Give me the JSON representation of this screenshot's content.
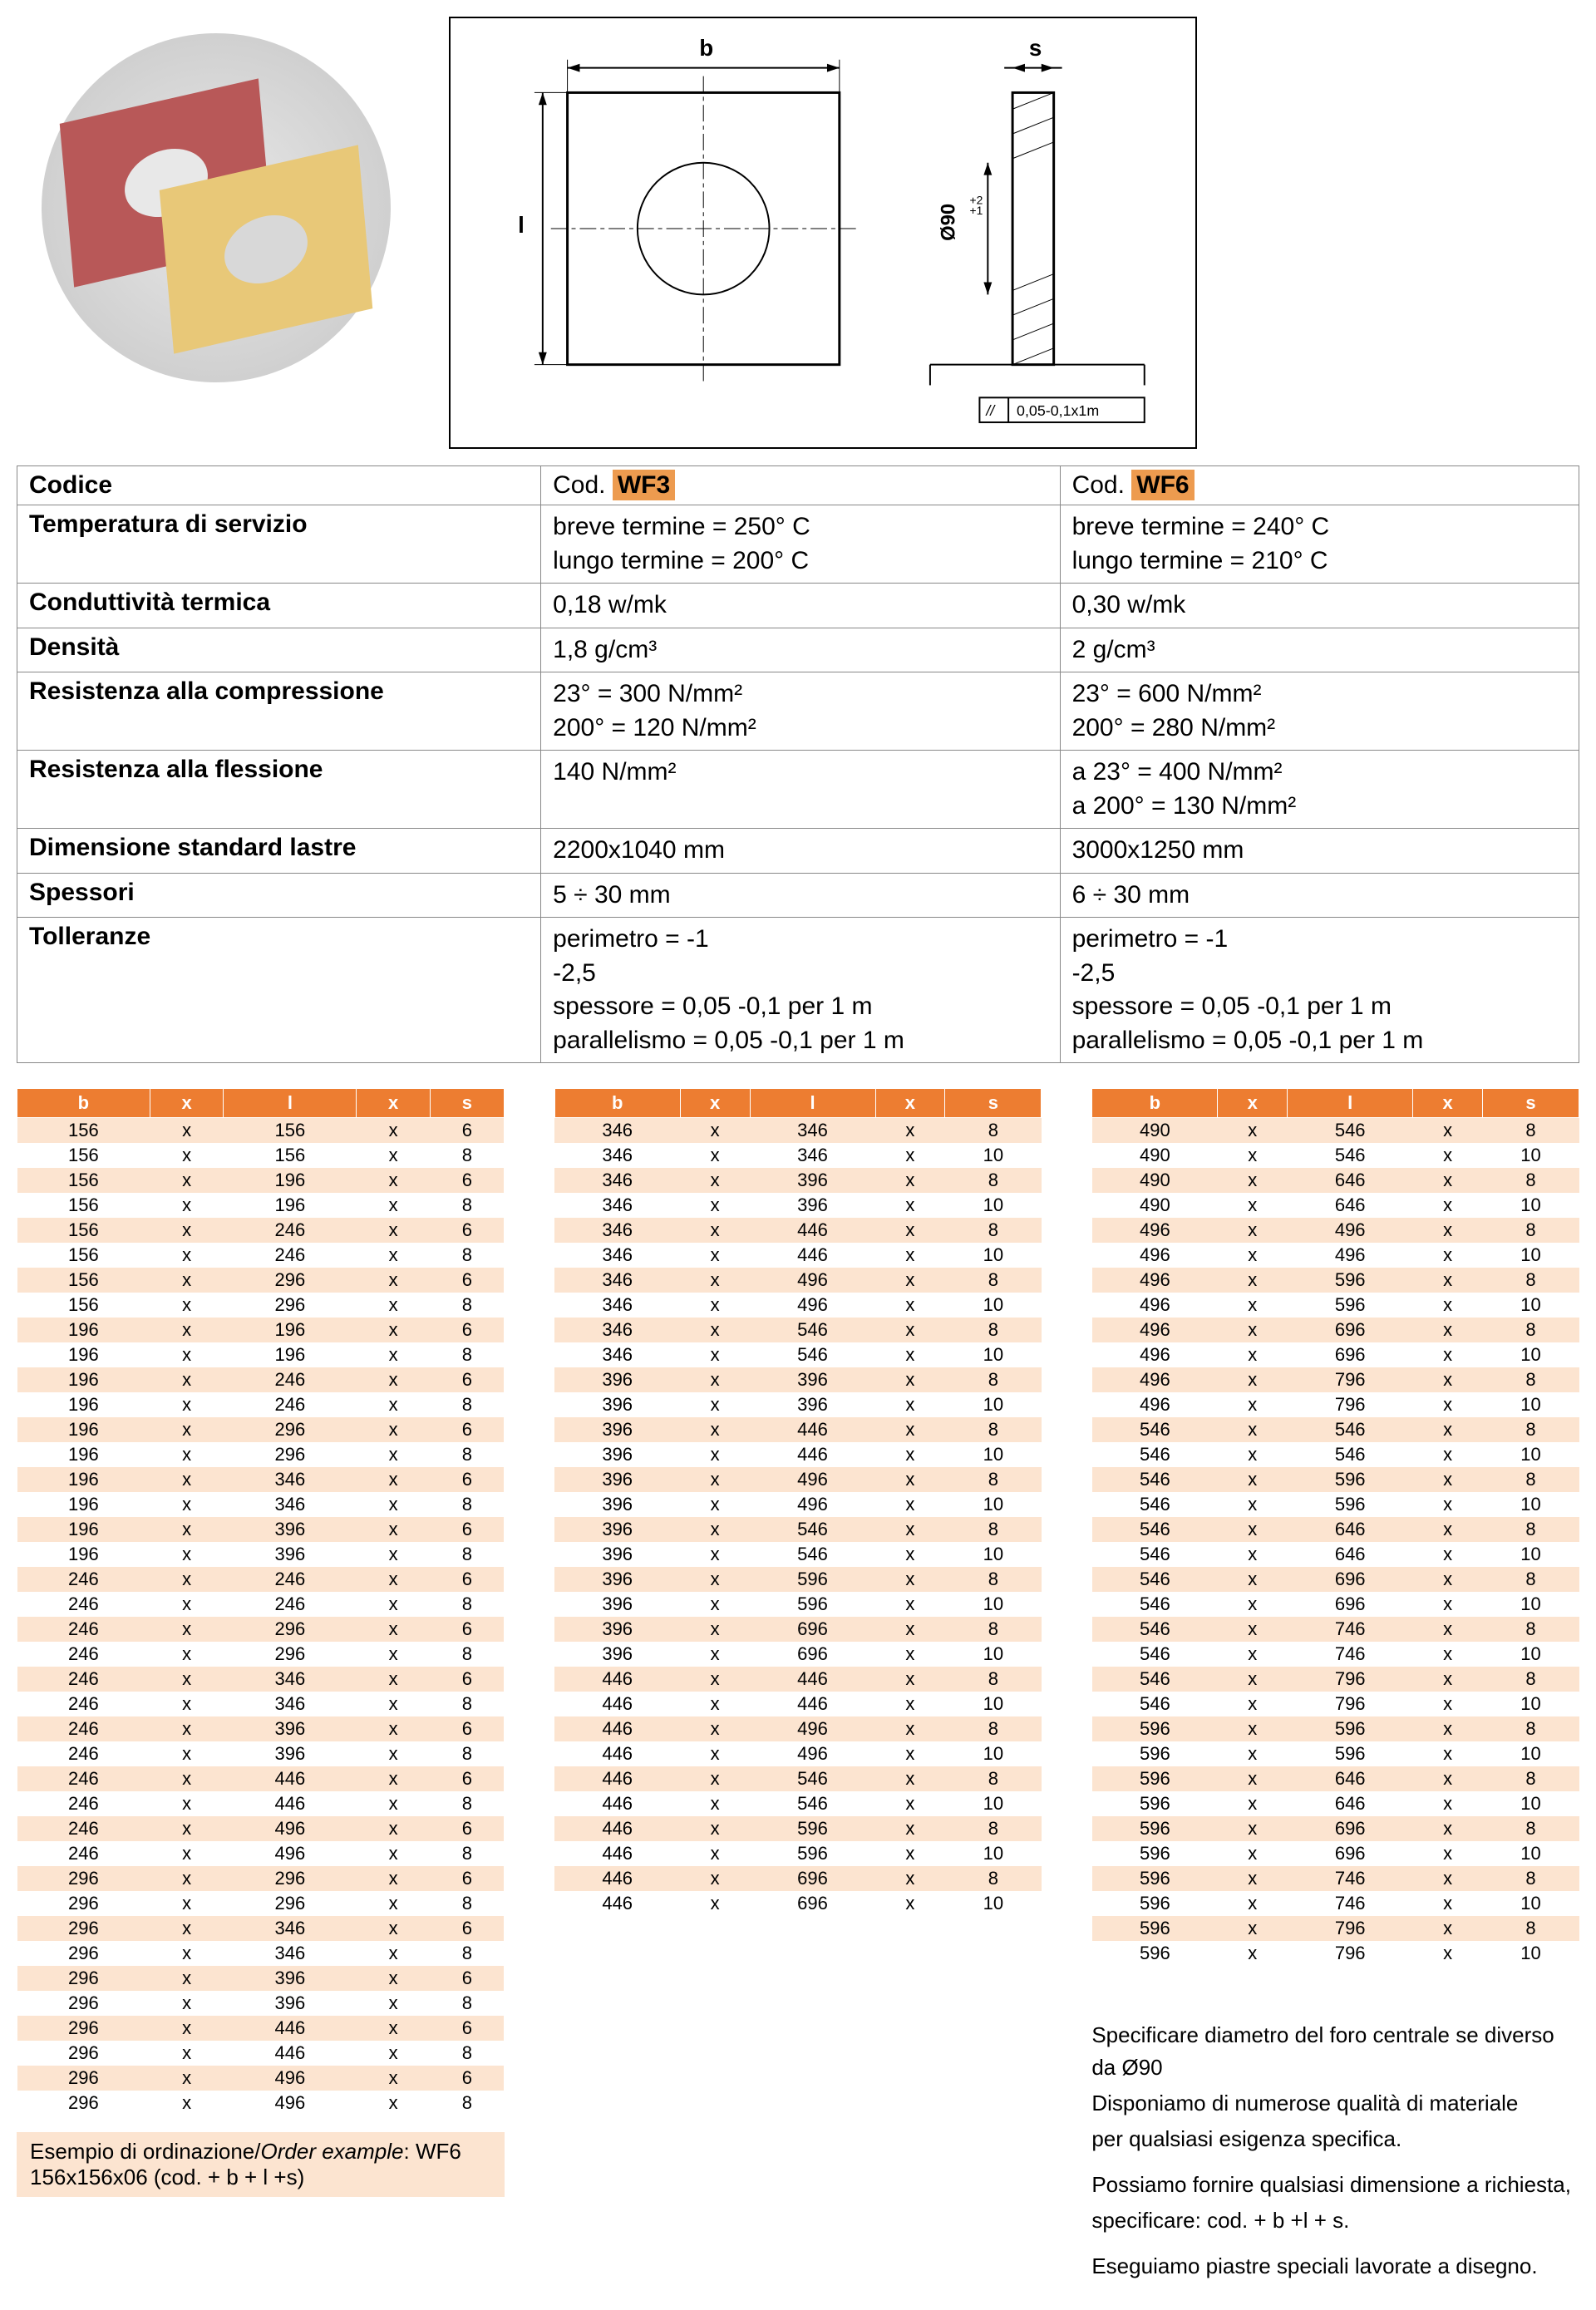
{
  "drawing": {
    "label_b": "b",
    "label_l": "l",
    "label_s": "s",
    "diameter_label": "Ø90",
    "diameter_tol_upper": "+2",
    "diameter_tol_lower": "+1",
    "flatness_box": "0,05-0,1x1m",
    "flatness_symbol": "//"
  },
  "spec": {
    "codice_label": "Codice",
    "cod_prefix": "Cod.",
    "wf3": "WF3",
    "wf6": "WF6",
    "rows": [
      {
        "label": "Temperatura di servizio",
        "wf3": "breve termine = 250° C\nlungo termine = 200° C",
        "wf6": "breve termine = 240° C\nlungo termine = 210° C"
      },
      {
        "label": "Conduttività termica",
        "wf3": "0,18 w/mk",
        "wf6": "0,30 w/mk"
      },
      {
        "label": "Densità",
        "wf3": "1,8 g/cm³",
        "wf6": "2 g/cm³"
      },
      {
        "label": "Resistenza alla compressione",
        "wf3": "  23° = 300 N/mm²\n200° = 120 N/mm²",
        "wf6": "  23° = 600 N/mm²\n200° = 280 N/mm²"
      },
      {
        "label": "Resistenza alla flessione",
        "wf3": "140 N/mm²",
        "wf6": "a   23° = 400 N/mm²\na 200° = 130 N/mm²"
      },
      {
        "label": "Dimensione standard lastre",
        "wf3": "2200x1040 mm",
        "wf6": "3000x1250 mm"
      },
      {
        "label": "Spessori",
        "wf3": "5 ÷ 30 mm",
        "wf6": "6 ÷ 30 mm"
      },
      {
        "label": "Tolleranze",
        "wf3": "perimetro     = -1\n                       -2,5\nspessore      = 0,05 -0,1 per 1 m\nparallelismo = 0,05 -0,1 per 1 m",
        "wf6": "perimetro     = -1\n                       -2,5\nspessore      = 0,05 -0,1 per 1 m\nparallelismo = 0,05 -0,1 per 1 m"
      }
    ]
  },
  "dim_headers": [
    "b",
    "x",
    "l",
    "x",
    "s"
  ],
  "dim_table1": [
    [
      156,
      "x",
      156,
      "x",
      6
    ],
    [
      156,
      "x",
      156,
      "x",
      8
    ],
    [
      156,
      "x",
      196,
      "x",
      6
    ],
    [
      156,
      "x",
      196,
      "x",
      8
    ],
    [
      156,
      "x",
      246,
      "x",
      6
    ],
    [
      156,
      "x",
      246,
      "x",
      8
    ],
    [
      156,
      "x",
      296,
      "x",
      6
    ],
    [
      156,
      "x",
      296,
      "x",
      8
    ],
    [
      196,
      "x",
      196,
      "x",
      6
    ],
    [
      196,
      "x",
      196,
      "x",
      8
    ],
    [
      196,
      "x",
      246,
      "x",
      6
    ],
    [
      196,
      "x",
      246,
      "x",
      8
    ],
    [
      196,
      "x",
      296,
      "x",
      6
    ],
    [
      196,
      "x",
      296,
      "x",
      8
    ],
    [
      196,
      "x",
      346,
      "x",
      6
    ],
    [
      196,
      "x",
      346,
      "x",
      8
    ],
    [
      196,
      "x",
      396,
      "x",
      6
    ],
    [
      196,
      "x",
      396,
      "x",
      8
    ],
    [
      246,
      "x",
      246,
      "x",
      6
    ],
    [
      246,
      "x",
      246,
      "x",
      8
    ],
    [
      246,
      "x",
      296,
      "x",
      6
    ],
    [
      246,
      "x",
      296,
      "x",
      8
    ],
    [
      246,
      "x",
      346,
      "x",
      6
    ],
    [
      246,
      "x",
      346,
      "x",
      8
    ],
    [
      246,
      "x",
      396,
      "x",
      6
    ],
    [
      246,
      "x",
      396,
      "x",
      8
    ],
    [
      246,
      "x",
      446,
      "x",
      6
    ],
    [
      246,
      "x",
      446,
      "x",
      8
    ],
    [
      246,
      "x",
      496,
      "x",
      6
    ],
    [
      246,
      "x",
      496,
      "x",
      8
    ],
    [
      296,
      "x",
      296,
      "x",
      6
    ],
    [
      296,
      "x",
      296,
      "x",
      8
    ],
    [
      296,
      "x",
      346,
      "x",
      6
    ],
    [
      296,
      "x",
      346,
      "x",
      8
    ],
    [
      296,
      "x",
      396,
      "x",
      6
    ],
    [
      296,
      "x",
      396,
      "x",
      8
    ],
    [
      296,
      "x",
      446,
      "x",
      6
    ],
    [
      296,
      "x",
      446,
      "x",
      8
    ],
    [
      296,
      "x",
      496,
      "x",
      6
    ],
    [
      296,
      "x",
      496,
      "x",
      8
    ]
  ],
  "dim_table2": [
    [
      346,
      "x",
      346,
      "x",
      8
    ],
    [
      346,
      "x",
      346,
      "x",
      10
    ],
    [
      346,
      "x",
      396,
      "x",
      8
    ],
    [
      346,
      "x",
      396,
      "x",
      10
    ],
    [
      346,
      "x",
      446,
      "x",
      8
    ],
    [
      346,
      "x",
      446,
      "x",
      10
    ],
    [
      346,
      "x",
      496,
      "x",
      8
    ],
    [
      346,
      "x",
      496,
      "x",
      10
    ],
    [
      346,
      "x",
      546,
      "x",
      8
    ],
    [
      346,
      "x",
      546,
      "x",
      10
    ],
    [
      396,
      "x",
      396,
      "x",
      8
    ],
    [
      396,
      "x",
      396,
      "x",
      10
    ],
    [
      396,
      "x",
      446,
      "x",
      8
    ],
    [
      396,
      "x",
      446,
      "x",
      10
    ],
    [
      396,
      "x",
      496,
      "x",
      8
    ],
    [
      396,
      "x",
      496,
      "x",
      10
    ],
    [
      396,
      "x",
      546,
      "x",
      8
    ],
    [
      396,
      "x",
      546,
      "x",
      10
    ],
    [
      396,
      "x",
      596,
      "x",
      8
    ],
    [
      396,
      "x",
      596,
      "x",
      10
    ],
    [
      396,
      "x",
      696,
      "x",
      8
    ],
    [
      396,
      "x",
      696,
      "x",
      10
    ],
    [
      446,
      "x",
      446,
      "x",
      8
    ],
    [
      446,
      "x",
      446,
      "x",
      10
    ],
    [
      446,
      "x",
      496,
      "x",
      8
    ],
    [
      446,
      "x",
      496,
      "x",
      10
    ],
    [
      446,
      "x",
      546,
      "x",
      8
    ],
    [
      446,
      "x",
      546,
      "x",
      10
    ],
    [
      446,
      "x",
      596,
      "x",
      8
    ],
    [
      446,
      "x",
      596,
      "x",
      10
    ],
    [
      446,
      "x",
      696,
      "x",
      8
    ],
    [
      446,
      "x",
      696,
      "x",
      10
    ]
  ],
  "dim_table3": [
    [
      490,
      "x",
      546,
      "x",
      8
    ],
    [
      490,
      "x",
      546,
      "x",
      10
    ],
    [
      490,
      "x",
      646,
      "x",
      8
    ],
    [
      490,
      "x",
      646,
      "x",
      10
    ],
    [
      496,
      "x",
      496,
      "x",
      8
    ],
    [
      496,
      "x",
      496,
      "x",
      10
    ],
    [
      496,
      "x",
      596,
      "x",
      8
    ],
    [
      496,
      "x",
      596,
      "x",
      10
    ],
    [
      496,
      "x",
      696,
      "x",
      8
    ],
    [
      496,
      "x",
      696,
      "x",
      10
    ],
    [
      496,
      "x",
      796,
      "x",
      8
    ],
    [
      496,
      "x",
      796,
      "x",
      10
    ],
    [
      546,
      "x",
      546,
      "x",
      8
    ],
    [
      546,
      "x",
      546,
      "x",
      10
    ],
    [
      546,
      "x",
      596,
      "x",
      8
    ],
    [
      546,
      "x",
      596,
      "x",
      10
    ],
    [
      546,
      "x",
      646,
      "x",
      8
    ],
    [
      546,
      "x",
      646,
      "x",
      10
    ],
    [
      546,
      "x",
      696,
      "x",
      8
    ],
    [
      546,
      "x",
      696,
      "x",
      10
    ],
    [
      546,
      "x",
      746,
      "x",
      8
    ],
    [
      546,
      "x",
      746,
      "x",
      10
    ],
    [
      546,
      "x",
      796,
      "x",
      8
    ],
    [
      546,
      "x",
      796,
      "x",
      10
    ],
    [
      596,
      "x",
      596,
      "x",
      8
    ],
    [
      596,
      "x",
      596,
      "x",
      10
    ],
    [
      596,
      "x",
      646,
      "x",
      8
    ],
    [
      596,
      "x",
      646,
      "x",
      10
    ],
    [
      596,
      "x",
      696,
      "x",
      8
    ],
    [
      596,
      "x",
      696,
      "x",
      10
    ],
    [
      596,
      "x",
      746,
      "x",
      8
    ],
    [
      596,
      "x",
      746,
      "x",
      10
    ],
    [
      596,
      "x",
      796,
      "x",
      8
    ],
    [
      596,
      "x",
      796,
      "x",
      10
    ]
  ],
  "notes": {
    "p1": "Specificare diametro del foro centrale se diverso da Ø90",
    "p2": "Disponiamo di numerose qualità di materiale",
    "p3": "per qualsiasi esigenza specifica.",
    "p4": "Possiamo fornire qualsiasi dimensione a richiesta,",
    "p5": "specificare: cod. + b +l + s.",
    "p6": "Eseguiamo piastre speciali lavorate a disegno."
  },
  "order_example": {
    "label_it": "Esempio di ordinazione",
    "label_en": "Order example",
    "value": "WF6 156x156x06 (cod. + b + l +s)"
  },
  "colors": {
    "header_bg": "#ed7d31",
    "row_alt": "#fce4d0",
    "highlight": "#ed9b4f"
  }
}
